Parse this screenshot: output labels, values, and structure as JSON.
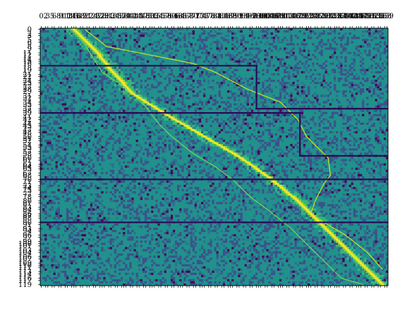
{
  "chart_data": {
    "type": "heatmap",
    "title": "",
    "xlabel": "",
    "ylabel": "",
    "colormap": "viridis",
    "rows": 120,
    "cols": 160,
    "xlim": [
      0,
      159
    ],
    "ylim": [
      119,
      0
    ],
    "x_tick_labels": [
      "0",
      "2",
      "3",
      "5",
      "6",
      "8",
      "9",
      "11",
      "12",
      "14",
      "15",
      "16",
      "18",
      "19",
      "21",
      "22",
      "24",
      "25",
      "27",
      "28",
      "29",
      "31",
      "32",
      "34",
      "35",
      "37",
      "38",
      "39",
      "41",
      "42",
      "44",
      "45",
      "47",
      "48",
      "50",
      "51",
      "52",
      "54",
      "55",
      "57",
      "58",
      "60",
      "61",
      "63",
      "64",
      "65",
      "67",
      "68",
      "70",
      "71",
      "73",
      "74",
      "75",
      "77",
      "78",
      "80",
      "81",
      "83",
      "84",
      "86",
      "87",
      "88",
      "90",
      "91",
      "93",
      "94",
      "96",
      "97",
      "99",
      "100",
      "101",
      "103",
      "104",
      "106",
      "107",
      "109",
      "110",
      "111",
      "113",
      "114",
      "116",
      "117",
      "119",
      "120",
      "122",
      "123",
      "124",
      "126",
      "127",
      "129",
      "130",
      "132",
      "133",
      "135",
      "136",
      "137",
      "139",
      "140",
      "142",
      "143",
      "145",
      "146",
      "147",
      "149",
      "150",
      "152",
      "153",
      "155",
      "156",
      "158",
      "159"
    ],
    "y_tick_labels": [
      "0",
      "2",
      "3",
      "5",
      "6",
      "8",
      "9",
      "11",
      "12",
      "14",
      "15",
      "16",
      "18",
      "19",
      "21",
      "22",
      "24",
      "25",
      "27",
      "28",
      "29",
      "31",
      "32",
      "34",
      "35",
      "37",
      "38",
      "39",
      "41",
      "42",
      "44",
      "45",
      "47",
      "48",
      "50",
      "51",
      "52",
      "54",
      "55",
      "57",
      "58",
      "60",
      "61",
      "63",
      "64",
      "65",
      "67",
      "68",
      "70",
      "71",
      "73",
      "74",
      "75",
      "77",
      "78",
      "80",
      "81",
      "83",
      "84",
      "86",
      "87",
      "88",
      "90",
      "91",
      "93",
      "94",
      "96",
      "97",
      "99",
      "100",
      "101",
      "103",
      "104",
      "106",
      "107",
      "109",
      "110",
      "111",
      "113",
      "114",
      "116",
      "117",
      "119"
    ],
    "segment_boundaries": [
      {
        "row": 17,
        "from_col": 0,
        "to_col": 99
      },
      {
        "row": 37,
        "from_col": 99,
        "to_col": 159
      },
      {
        "row": 39,
        "from_col": 0,
        "to_col": 119
      },
      {
        "row": 59,
        "from_col": 119,
        "to_col": 159
      },
      {
        "row": 70,
        "from_col": 0,
        "to_col": 159
      },
      {
        "row": 90,
        "from_col": 0,
        "to_col": 159
      }
    ],
    "segment_vertical_edges": [
      {
        "col": 99,
        "from_row": 17,
        "to_row": 37
      },
      {
        "col": 119,
        "from_row": 39,
        "to_row": 59
      }
    ],
    "diagonal_path": [
      [
        15,
        0
      ],
      [
        25,
        10
      ],
      [
        33,
        20
      ],
      [
        42,
        30
      ],
      [
        58,
        40
      ],
      [
        75,
        50
      ],
      [
        92,
        60
      ],
      [
        106,
        70
      ],
      [
        118,
        80
      ],
      [
        128,
        90
      ],
      [
        138,
        100
      ],
      [
        148,
        110
      ],
      [
        157,
        119
      ]
    ],
    "envelope_upper": [
      [
        20,
        0
      ],
      [
        30,
        8
      ],
      [
        40,
        10
      ],
      [
        50,
        12
      ],
      [
        60,
        14
      ],
      [
        70,
        16
      ],
      [
        80,
        20
      ],
      [
        95,
        28
      ],
      [
        110,
        34
      ],
      [
        118,
        42
      ],
      [
        122,
        50
      ],
      [
        128,
        56
      ],
      [
        132,
        60
      ],
      [
        133,
        68
      ],
      [
        130,
        72
      ],
      [
        126,
        80
      ],
      [
        124,
        86
      ],
      [
        130,
        90
      ],
      [
        140,
        96
      ],
      [
        150,
        104
      ],
      [
        157,
        112
      ]
    ],
    "envelope_lower": [
      [
        18,
        4
      ],
      [
        28,
        20
      ],
      [
        40,
        28
      ],
      [
        48,
        36
      ],
      [
        54,
        44
      ],
      [
        60,
        50
      ],
      [
        70,
        58
      ],
      [
        80,
        64
      ],
      [
        88,
        70
      ],
      [
        96,
        78
      ],
      [
        104,
        84
      ],
      [
        114,
        92
      ],
      [
        122,
        100
      ],
      [
        130,
        108
      ],
      [
        138,
        116
      ],
      [
        148,
        119
      ]
    ]
  }
}
